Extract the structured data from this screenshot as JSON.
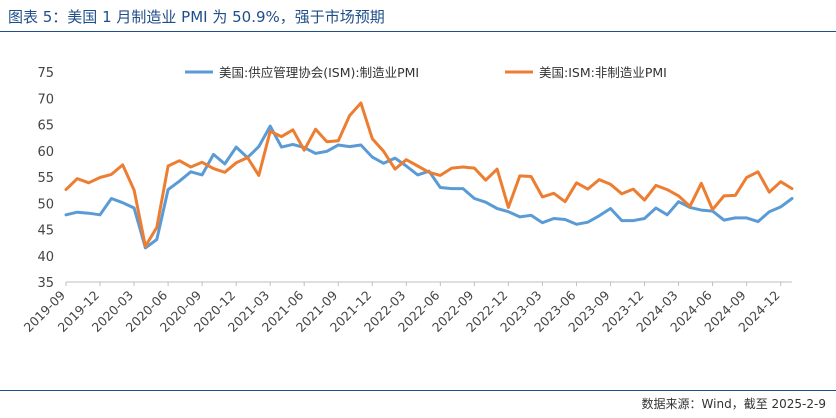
{
  "header": {
    "title": "图表 5：美国 1 月制造业 PMI 为 50.9%，强于市场预期"
  },
  "footer": {
    "source": "数据来源：Wind，截至 2025-2-9"
  },
  "chart_data": {
    "type": "line",
    "title": "图表 5：美国 1 月制造业 PMI 为 50.9%，强于市场预期",
    "xlabel": "",
    "ylabel": "",
    "ylim": [
      35,
      75
    ],
    "yticks": [
      35,
      40,
      45,
      50,
      55,
      60,
      65,
      70,
      75
    ],
    "grid": false,
    "legend_position": "top",
    "x_tick_labels": [
      "2019-09",
      "2019-12",
      "2020-03",
      "2020-06",
      "2020-09",
      "2020-12",
      "2021-03",
      "2021-06",
      "2021-09",
      "2021-12",
      "2022-03",
      "2022-06",
      "2022-09",
      "2022-12",
      "2023-03",
      "2023-06",
      "2023-09",
      "2023-12",
      "2024-03",
      "2024-06",
      "2024-09",
      "2024-12"
    ],
    "x": [
      "2019-09",
      "2019-10",
      "2019-11",
      "2019-12",
      "2020-01",
      "2020-02",
      "2020-03",
      "2020-04",
      "2020-05",
      "2020-06",
      "2020-07",
      "2020-08",
      "2020-09",
      "2020-10",
      "2020-11",
      "2020-12",
      "2021-01",
      "2021-02",
      "2021-03",
      "2021-04",
      "2021-05",
      "2021-06",
      "2021-07",
      "2021-08",
      "2021-09",
      "2021-10",
      "2021-11",
      "2021-12",
      "2022-01",
      "2022-02",
      "2022-03",
      "2022-04",
      "2022-05",
      "2022-06",
      "2022-07",
      "2022-08",
      "2022-09",
      "2022-10",
      "2022-11",
      "2022-12",
      "2023-01",
      "2023-02",
      "2023-03",
      "2023-04",
      "2023-05",
      "2023-06",
      "2023-07",
      "2023-08",
      "2023-09",
      "2023-10",
      "2023-11",
      "2023-12",
      "2024-01",
      "2024-02",
      "2024-03",
      "2024-04",
      "2024-05",
      "2024-06",
      "2024-07",
      "2024-08",
      "2024-09",
      "2024-10",
      "2024-11",
      "2024-12",
      "2025-01"
    ],
    "series": [
      {
        "name": "美国:供应管理协会(ISM):制造业PMI",
        "color": "#5b9bd5",
        "values": [
          47.8,
          48.3,
          48.1,
          47.8,
          50.9,
          50.1,
          49.1,
          41.5,
          43.1,
          52.6,
          54.2,
          56.0,
          55.4,
          59.3,
          57.5,
          60.7,
          58.7,
          60.8,
          64.7,
          60.7,
          61.2,
          60.6,
          59.5,
          59.9,
          61.1,
          60.8,
          61.1,
          58.8,
          57.6,
          58.6,
          57.1,
          55.4,
          56.1,
          53.0,
          52.8,
          52.8,
          50.9,
          50.2,
          49.0,
          48.4,
          47.4,
          47.7,
          46.3,
          47.1,
          46.9,
          46.0,
          46.4,
          47.6,
          49.0,
          46.7,
          46.7,
          47.1,
          49.1,
          47.8,
          50.3,
          49.2,
          48.7,
          48.5,
          46.8,
          47.2,
          47.2,
          46.5,
          48.4,
          49.3,
          50.9
        ]
      },
      {
        "name": "美国:ISM:非制造业PMI",
        "color": "#ed7d31",
        "values": [
          52.6,
          54.7,
          53.9,
          54.9,
          55.5,
          57.3,
          52.5,
          41.8,
          45.4,
          57.1,
          58.1,
          56.9,
          57.8,
          56.6,
          55.9,
          57.7,
          58.7,
          55.3,
          63.7,
          62.7,
          64.0,
          60.1,
          64.1,
          61.7,
          61.9,
          66.7,
          69.1,
          62.3,
          59.9,
          56.5,
          58.3,
          57.1,
          55.9,
          55.3,
          56.7,
          56.9,
          56.7,
          54.4,
          56.5,
          49.2,
          55.2,
          55.1,
          51.2,
          51.9,
          50.3,
          53.9,
          52.7,
          54.5,
          53.6,
          51.8,
          52.7,
          50.6,
          53.4,
          52.6,
          51.4,
          49.4,
          53.8,
          48.8,
          51.4,
          51.5,
          54.9,
          56.0,
          52.1,
          54.1,
          52.8
        ]
      }
    ]
  }
}
